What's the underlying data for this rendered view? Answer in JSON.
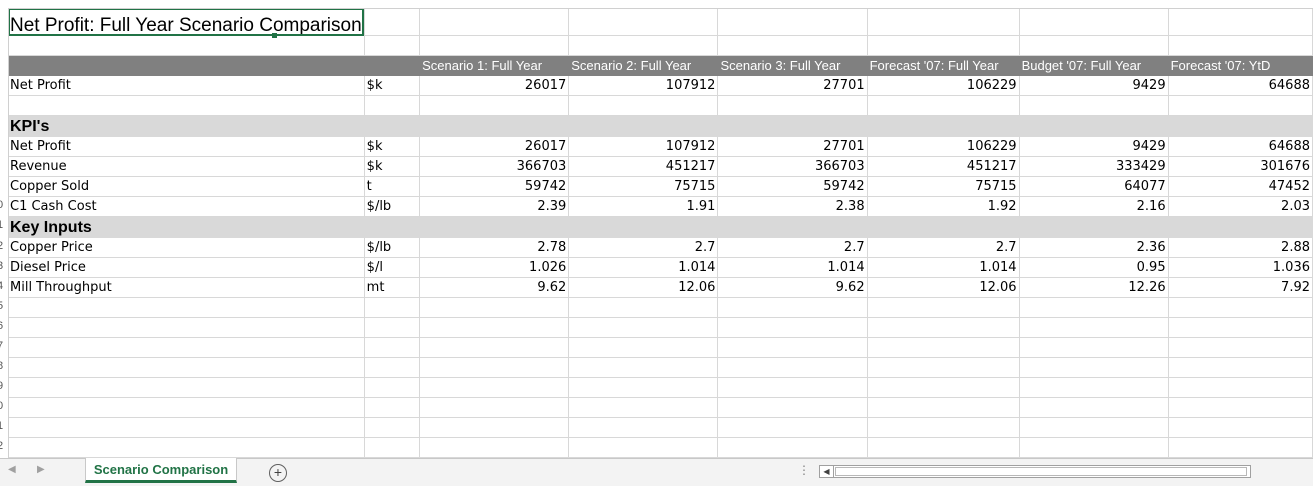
{
  "sheet": {
    "title": "Net Profit: Full Year Scenario Comparison",
    "headers": [
      "",
      "",
      "Scenario 1: Full Year",
      "Scenario 2: Full Year",
      "Scenario 3: Full Year",
      "Forecast '07: Full Year",
      "Budget '07: Full Year",
      "Forecast '07: YtD"
    ],
    "top_row": {
      "label": "Net Profit",
      "unit": "$k",
      "values": [
        "26017",
        "107912",
        "27701",
        "106229",
        "9429",
        "64688"
      ]
    },
    "kpis": {
      "title": "KPI's",
      "rows": [
        {
          "label": "Net Profit",
          "unit": "$k",
          "values": [
            "26017",
            "107912",
            "27701",
            "106229",
            "9429",
            "64688"
          ]
        },
        {
          "label": "Revenue",
          "unit": "$k",
          "values": [
            "366703",
            "451217",
            "366703",
            "451217",
            "333429",
            "301676"
          ]
        },
        {
          "label": "Copper Sold",
          "unit": "t",
          "values": [
            "59742",
            "75715",
            "59742",
            "75715",
            "64077",
            "47452"
          ]
        },
        {
          "label": "C1 Cash Cost",
          "unit": "$/lb",
          "values": [
            "2.39",
            "1.91",
            "2.38",
            "1.92",
            "2.16",
            "2.03"
          ]
        }
      ]
    },
    "inputs": {
      "title": "Key Inputs",
      "rows": [
        {
          "label": "Copper Price",
          "unit": "$/lb",
          "values": [
            "2.78",
            "2.7",
            "2.7",
            "2.7",
            "2.36",
            "2.88"
          ]
        },
        {
          "label": "Diesel Price",
          "unit": "$/l",
          "values": [
            "1.026",
            "1.014",
            "1.014",
            "1.014",
            "0.95",
            "1.036"
          ]
        },
        {
          "label": "Mill Throughput",
          "unit": "mt",
          "values": [
            "9.62",
            "12.06",
            "9.62",
            "12.06",
            "12.26",
            "7.92"
          ]
        }
      ]
    },
    "row_numbers": [
      "0",
      "1",
      "2",
      "3",
      "4",
      "5",
      "6",
      "7",
      "8",
      "9",
      "0",
      "1",
      "2"
    ]
  },
  "tabbar": {
    "active_tab": "Scenario Comparison",
    "add_symbol": "+",
    "prev_symbol": "◀",
    "next_symbol": "▶",
    "dots": "⋮",
    "scroll_left_symbol": "◀"
  }
}
